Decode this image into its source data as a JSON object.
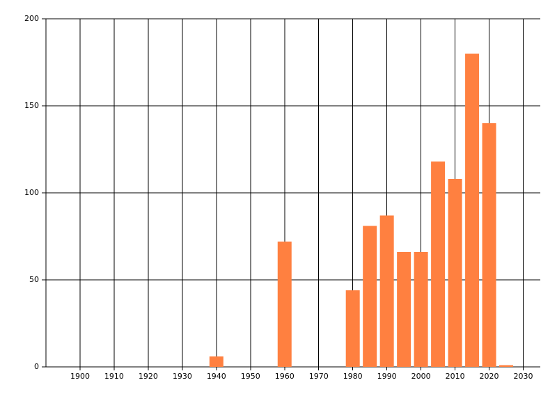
{
  "chart_data": {
    "type": "bar",
    "x": [
      1940,
      1960,
      1980,
      1985,
      1990,
      1995,
      2000,
      2005,
      2010,
      2015,
      2020,
      2025
    ],
    "values": [
      6,
      72,
      44,
      81,
      87,
      66,
      66,
      118,
      108,
      180,
      140,
      1
    ],
    "color": "#ff8040",
    "xlim": [
      1890,
      2035
    ],
    "xticks": [
      1900,
      1910,
      1920,
      1930,
      1940,
      1950,
      1960,
      1970,
      1980,
      1990,
      2000,
      2010,
      2020,
      2030
    ],
    "ylim": [
      0,
      200
    ],
    "yticks": [
      0,
      50,
      100,
      150,
      200
    ],
    "grid": true
  }
}
